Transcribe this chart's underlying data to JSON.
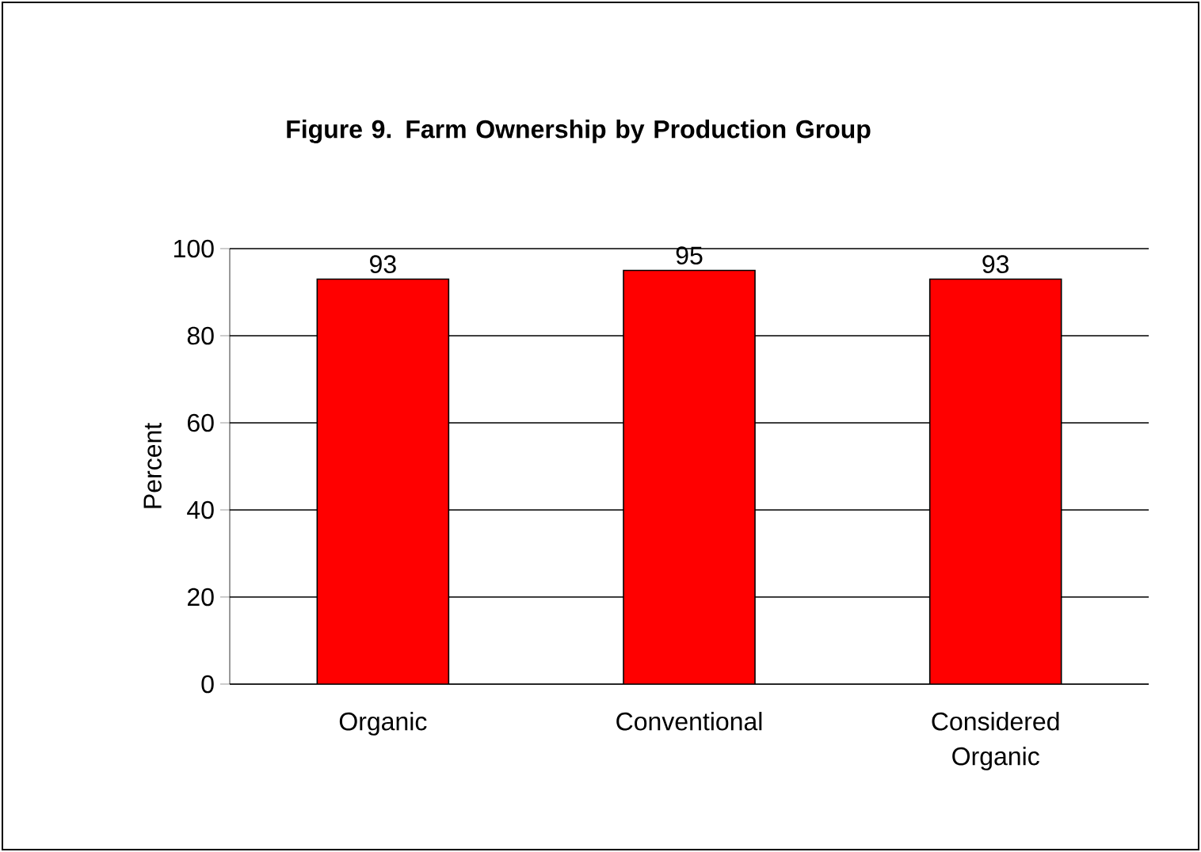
{
  "chart_data": {
    "type": "bar",
    "title": "Figure 9.  Farm Ownership by Production Group",
    "ylabel": "Percent",
    "categories": [
      "Organic",
      "Conventional",
      "Considered Organic"
    ],
    "values": [
      93,
      95,
      93
    ],
    "color": "#ff0000",
    "ylim": [
      0,
      100
    ],
    "yticks": [
      0,
      20,
      40,
      60,
      80,
      100
    ],
    "grid": "y",
    "data_labels": true
  }
}
